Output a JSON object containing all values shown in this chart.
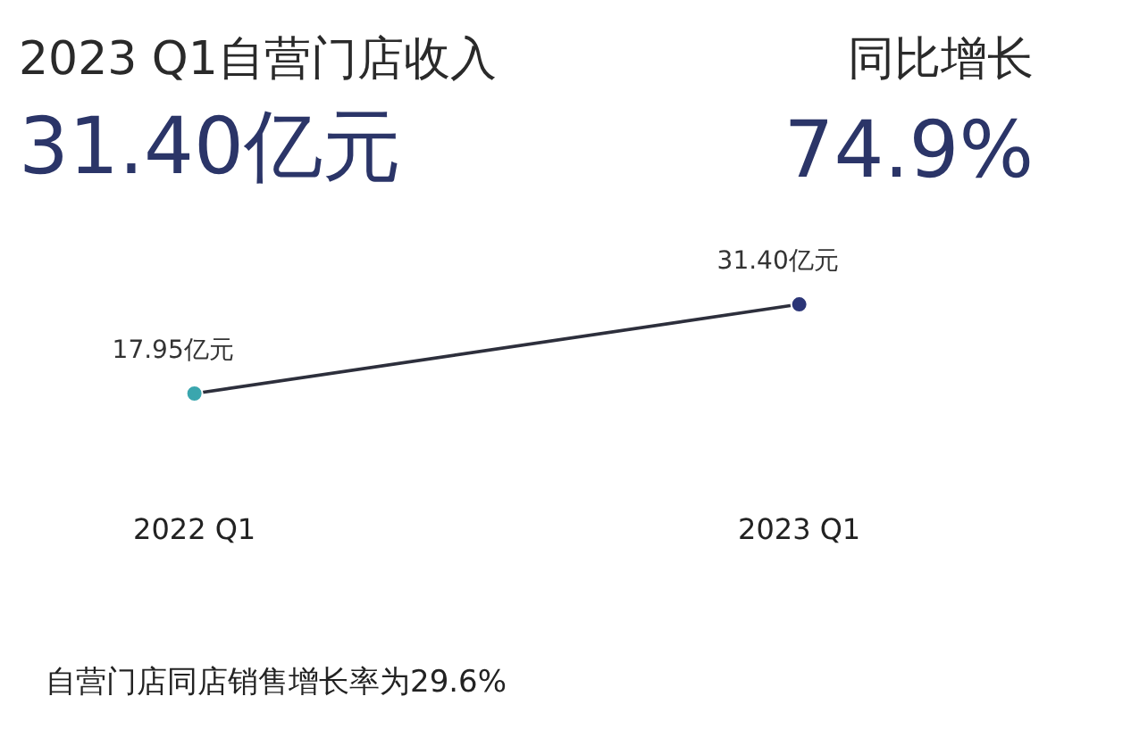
{
  "chart_data": {
    "type": "line",
    "title": "2023 Q1自营门店收入",
    "subtitle": "31.40亿元",
    "annotations": [
      "同比增长",
      "74.9%",
      "自营门店同店销售增长率为29.6%"
    ],
    "categories": [
      "2022 Q1",
      "2023 Q1"
    ],
    "series": [
      {
        "color": "#2d2f3c",
        "colors": [
          "#3aa6ae",
          "#2b3577"
        ],
        "values": [
          17.95,
          31.4
        ],
        "value_labels": [
          "17.95亿元",
          "31.40亿元"
        ]
      }
    ],
    "marker": "circle",
    "line_style": "solid",
    "grid": false
  }
}
